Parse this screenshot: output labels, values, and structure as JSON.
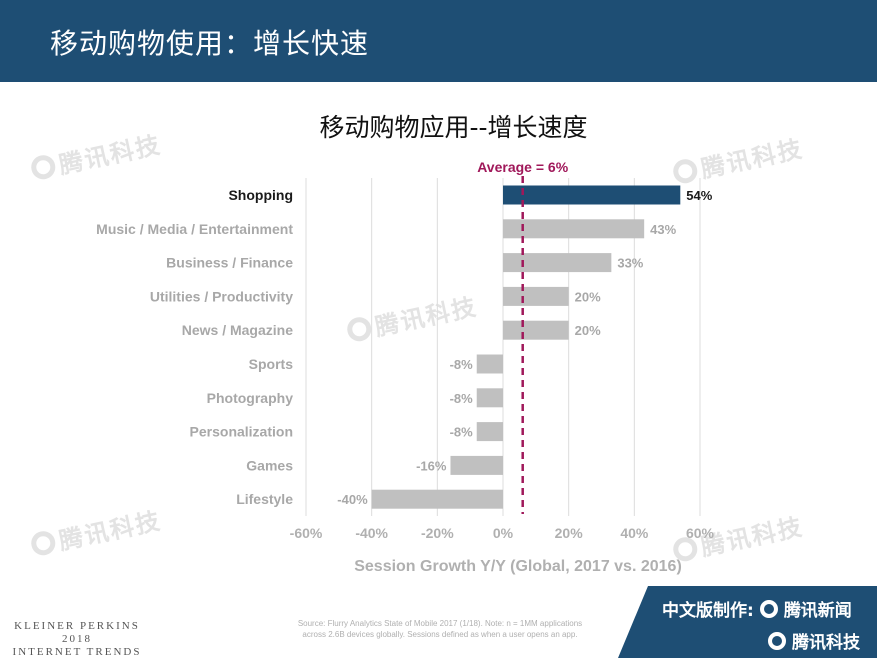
{
  "header": {
    "title": "移动购物使用：增长快速"
  },
  "watermark": {
    "text": "腾讯科技"
  },
  "chart_data": {
    "type": "bar",
    "orientation": "horizontal",
    "title": "移动购物应用--增长速度",
    "xlabel": "Session Growth Y/Y (Global, 2017 vs. 2016)",
    "ylabel": "",
    "xlim": [
      -60,
      60
    ],
    "x_ticks": [
      "-60%",
      "-40%",
      "-20%",
      "0%",
      "20%",
      "40%",
      "60%"
    ],
    "x_tick_values": [
      -60,
      -40,
      -20,
      0,
      20,
      40,
      60
    ],
    "grid": "vertical",
    "categories": [
      "Shopping",
      "Music / Media / Entertainment",
      "Business / Finance",
      "Utilities / Productivity",
      "News / Magazine",
      "Sports",
      "Photography",
      "Personalization",
      "Games",
      "Lifestyle"
    ],
    "values": [
      54,
      43,
      33,
      20,
      20,
      -8,
      -8,
      -8,
      -16,
      -40
    ],
    "value_labels": [
      "54%",
      "43%",
      "33%",
      "20%",
      "20%",
      "-8%",
      "-8%",
      "-8%",
      "-16%",
      "-40%"
    ],
    "highlight_category": "Shopping",
    "average": {
      "value": 6,
      "label": "Average = 6%"
    },
    "colors": {
      "highlight": "#1e4e74",
      "bar": "#c0c0c0",
      "average": "#a0185a",
      "grid": "#dcdcdc"
    }
  },
  "footer": {
    "brand_lines": [
      "KLEINER PERKINS",
      "2018",
      "INTERNET TRENDS"
    ],
    "source_lines": [
      "Source: Flurry Analytics State of Mobile 2017 (1/18).  Note: n = 1MM applications",
      "across 2.6B devices globally. Sessions defined as when a user opens an app."
    ],
    "credit_prefix": "中文版制作:",
    "credit_news": "腾讯新闻",
    "credit_tech": "腾讯科技"
  }
}
